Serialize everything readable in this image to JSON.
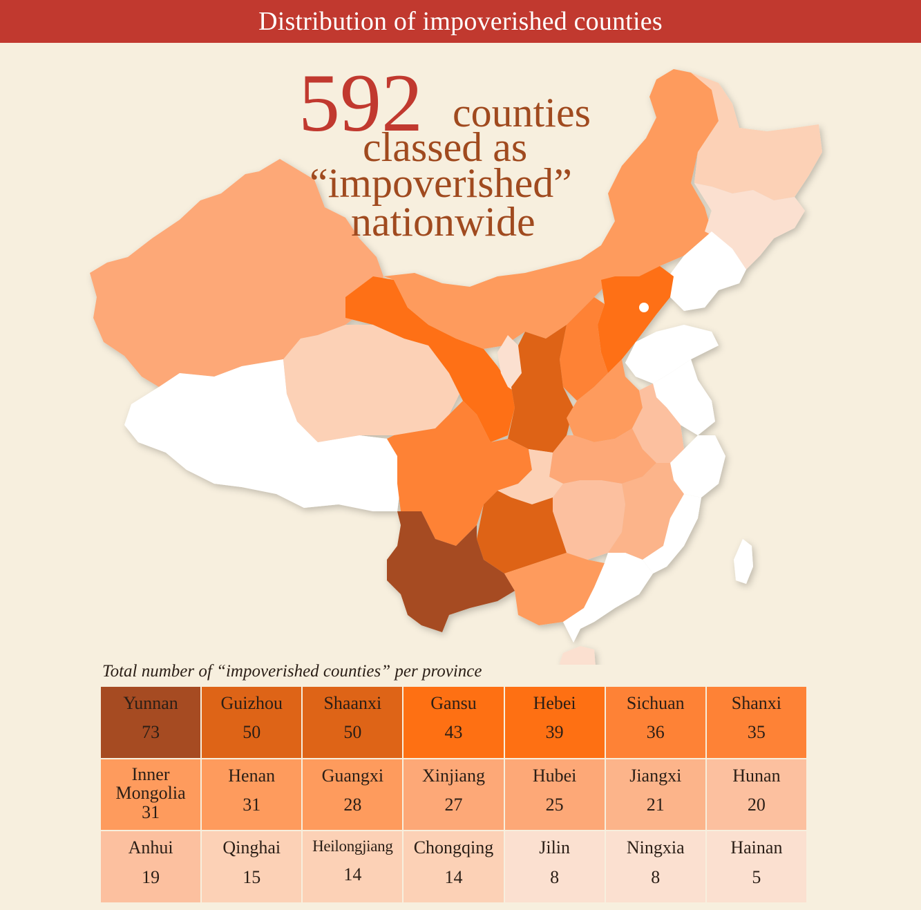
{
  "header": {
    "title": "Distribution of impoverished counties"
  },
  "headline": {
    "number": "592",
    "line1": "counties",
    "line2": "classed as",
    "line3": "“impoverished”",
    "line4": "nationwide"
  },
  "table": {
    "caption": "Total number of “impoverished counties” per province",
    "rows": [
      [
        {
          "name": "Yunnan",
          "value": "73",
          "color": "#a64b22"
        },
        {
          "name": "Guizhou",
          "value": "50",
          "color": "#de6417"
        },
        {
          "name": "Shaanxi",
          "value": "50",
          "color": "#de6417"
        },
        {
          "name": "Gansu",
          "value": "43",
          "color": "#fe7013"
        },
        {
          "name": "Hebei",
          "value": "39",
          "color": "#fe7013"
        },
        {
          "name": "Sichuan",
          "value": "36",
          "color": "#fe8236"
        },
        {
          "name": "Shanxi",
          "value": "35",
          "color": "#fe8236"
        }
      ],
      [
        {
          "name": "Inner Mongolia",
          "value": "31",
          "color": "#fe9b5d"
        },
        {
          "name": "Henan",
          "value": "31",
          "color": "#fe9b5d"
        },
        {
          "name": "Guangxi",
          "value": "28",
          "color": "#fe9b5d"
        },
        {
          "name": "Xinjiang",
          "value": "27",
          "color": "#fda877"
        },
        {
          "name": "Hubei",
          "value": "25",
          "color": "#fda877"
        },
        {
          "name": "Jiangxi",
          "value": "21",
          "color": "#fcb48a"
        },
        {
          "name": "Hunan",
          "value": "20",
          "color": "#fcc09f"
        }
      ],
      [
        {
          "name": "Anhui",
          "value": "19",
          "color": "#fcc09f"
        },
        {
          "name": "Qinghai",
          "value": "15",
          "color": "#fcd1b6"
        },
        {
          "name": "Heilongjiang",
          "value": "14",
          "color": "#fcd1b6"
        },
        {
          "name": "Chongqing",
          "value": "14",
          "color": "#fcd1b6"
        },
        {
          "name": "Jilin",
          "value": "8",
          "color": "#fbe0d0"
        },
        {
          "name": "Ningxia",
          "value": "8",
          "color": "#fbe0d0"
        },
        {
          "name": "Hainan",
          "value": "5",
          "color": "#fbe0d0"
        }
      ]
    ]
  },
  "colors": {
    "header_bg": "#c1392f",
    "background": "#f7efde",
    "accent": "#c1392f",
    "headline_text": "#a04a1f",
    "no_impoverished": "#ffffff"
  }
}
